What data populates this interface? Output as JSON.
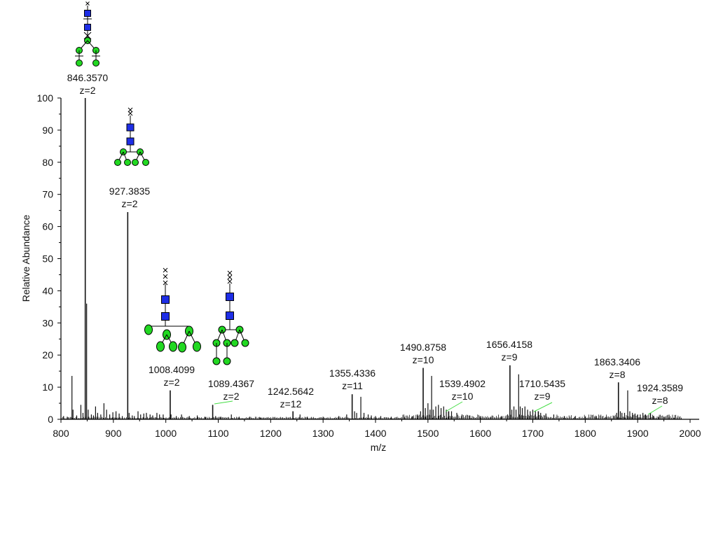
{
  "chart_data": {
    "type": "line",
    "title": "",
    "xlabel": "m/z",
    "ylabel": "Relative Abundance",
    "xlim": [
      800,
      2000
    ],
    "ylim": [
      0,
      100
    ],
    "x_ticks": [
      800,
      900,
      1000,
      1100,
      1200,
      1300,
      1400,
      1500,
      1600,
      1700,
      1800,
      1900,
      2000
    ],
    "y_ticks": [
      0,
      10,
      20,
      30,
      40,
      50,
      60,
      70,
      80,
      90,
      100
    ],
    "grid": false,
    "annotated_peaks": [
      {
        "mz": "846.3570",
        "z": "z=2",
        "x": 846.357,
        "y": 100,
        "glycan": "A"
      },
      {
        "mz": "927.3835",
        "z": "z=2",
        "x": 927.3835,
        "y": 64.5,
        "glycan": "B"
      },
      {
        "mz": "1008.4099",
        "z": "z=2",
        "x": 1008.4099,
        "y": 9,
        "glycan": "C"
      },
      {
        "mz": "1089.4367",
        "z": "z=2",
        "x": 1089.4367,
        "y": 4.5,
        "glycan": "D",
        "leader": true
      },
      {
        "mz": "1242.5642",
        "z": "z=12",
        "x": 1242.5642,
        "y": 2.5
      },
      {
        "mz": "1355.4336",
        "z": "z=11",
        "x": 1355.4336,
        "y": 7.8
      },
      {
        "mz": "1490.8758",
        "z": "z=10",
        "x": 1490.8758,
        "y": 16
      },
      {
        "mz": "1539.4902",
        "z": "z=10",
        "x": 1539.4902,
        "y": 2.5,
        "leader": true
      },
      {
        "mz": "1656.4158",
        "z": "z=9",
        "x": 1656.4158,
        "y": 16.8
      },
      {
        "mz": "1710.5435",
        "z": "z=9",
        "x": 1710.5435,
        "y": 2.5,
        "leader": true
      },
      {
        "mz": "1863.3406",
        "z": "z=8",
        "x": 1863.3406,
        "y": 11.5
      },
      {
        "mz": "1924.3589",
        "z": "z=8",
        "x": 1924.3589,
        "y": 2,
        "leader": true
      }
    ],
    "other_peaks": [
      [
        805,
        1
      ],
      [
        812,
        0.8
      ],
      [
        821,
        13.5
      ],
      [
        823,
        3
      ],
      [
        830,
        1.2
      ],
      [
        838,
        4.5
      ],
      [
        842,
        2
      ],
      [
        849,
        36
      ],
      [
        852,
        3
      ],
      [
        858,
        1.5
      ],
      [
        862,
        1.2
      ],
      [
        866,
        4
      ],
      [
        870,
        2
      ],
      [
        876,
        1.5
      ],
      [
        882,
        5
      ],
      [
        887,
        3
      ],
      [
        893,
        1.5
      ],
      [
        899,
        2.2
      ],
      [
        905,
        2.5
      ],
      [
        911,
        1.8
      ],
      [
        917,
        1
      ],
      [
        930,
        2
      ],
      [
        936,
        1.2
      ],
      [
        940,
        1
      ],
      [
        947,
        2.5
      ],
      [
        952,
        1.5
      ],
      [
        958,
        1.8
      ],
      [
        963,
        2
      ],
      [
        970,
        1.5
      ],
      [
        975,
        1.2
      ],
      [
        983,
        2
      ],
      [
        988,
        1.5
      ],
      [
        995,
        1.5
      ],
      [
        1010,
        1.5
      ],
      [
        1020,
        1
      ],
      [
        1030,
        1.5
      ],
      [
        1045,
        1
      ],
      [
        1060,
        1.2
      ],
      [
        1075,
        0.8
      ],
      [
        1095,
        1
      ],
      [
        1105,
        0.8
      ],
      [
        1125,
        1.5
      ],
      [
        1140,
        0.8
      ],
      [
        1160,
        0.8
      ],
      [
        1180,
        0.5
      ],
      [
        1256,
        1.5
      ],
      [
        1270,
        0.8
      ],
      [
        1300,
        0.8
      ],
      [
        1330,
        1
      ],
      [
        1345,
        1.5
      ],
      [
        1360,
        2.5
      ],
      [
        1364,
        2
      ],
      [
        1372,
        7
      ],
      [
        1378,
        2
      ],
      [
        1386,
        1.5
      ],
      [
        1392,
        1.2
      ],
      [
        1400,
        1
      ],
      [
        1410,
        1
      ],
      [
        1430,
        0.8
      ],
      [
        1455,
        0.8
      ],
      [
        1470,
        1
      ],
      [
        1480,
        1.5
      ],
      [
        1486,
        2.5
      ],
      [
        1495,
        3.5
      ],
      [
        1500,
        5
      ],
      [
        1504,
        3
      ],
      [
        1507,
        13.5
      ],
      [
        1510,
        3
      ],
      [
        1515,
        4
      ],
      [
        1520,
        4.5
      ],
      [
        1525,
        3.5
      ],
      [
        1530,
        4
      ],
      [
        1535,
        3
      ],
      [
        1545,
        2.5
      ],
      [
        1555,
        2
      ],
      [
        1565,
        1.5
      ],
      [
        1580,
        1.2
      ],
      [
        1600,
        1
      ],
      [
        1620,
        0.8
      ],
      [
        1640,
        1
      ],
      [
        1652,
        1.5
      ],
      [
        1660,
        3
      ],
      [
        1664,
        4
      ],
      [
        1668,
        3
      ],
      [
        1673,
        14
      ],
      [
        1676,
        4
      ],
      [
        1680,
        3.5
      ],
      [
        1685,
        4
      ],
      [
        1690,
        3
      ],
      [
        1695,
        2.5
      ],
      [
        1700,
        3
      ],
      [
        1705,
        2.5
      ],
      [
        1715,
        2
      ],
      [
        1725,
        1.8
      ],
      [
        1740,
        1.5
      ],
      [
        1760,
        1
      ],
      [
        1780,
        0.8
      ],
      [
        1800,
        0.8
      ],
      [
        1820,
        0.8
      ],
      [
        1840,
        0.8
      ],
      [
        1855,
        1
      ],
      [
        1860,
        2
      ],
      [
        1867,
        2.5
      ],
      [
        1870,
        2
      ],
      [
        1875,
        2
      ],
      [
        1881,
        9
      ],
      [
        1885,
        2.5
      ],
      [
        1890,
        2
      ],
      [
        1895,
        1.8
      ],
      [
        1900,
        1.5
      ],
      [
        1905,
        1.5
      ],
      [
        1910,
        2
      ],
      [
        1915,
        1.5
      ],
      [
        1930,
        1
      ],
      [
        1940,
        0.8
      ],
      [
        1950,
        0.8
      ],
      [
        1960,
        0.6
      ],
      [
        1970,
        0.5
      ]
    ]
  },
  "colors": {
    "trace": "#111111",
    "hexnac": "#1e2ee6",
    "hexose": "#22d822",
    "leader_line": "#44dd44"
  }
}
